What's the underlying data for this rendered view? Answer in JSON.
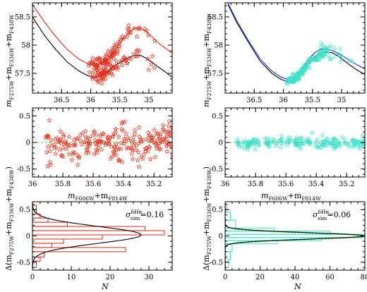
{
  "colors": {
    "red": "#e0301e",
    "cyan": "#3fe0c8",
    "black": "#000000",
    "blue": "#1c2cc8",
    "redline": "#d42a1a",
    "green": "#2ecc40"
  },
  "labels": {
    "y_top_prefix": "m",
    "y_top_sub1": "F275W",
    "y_top_plus1": "+m",
    "y_top_sub2": "F336W",
    "y_top_plus2": "+m",
    "y_top_sub3": "F438W",
    "y_bot_open": "Δ(m",
    "y_bot_sub1": "F275W",
    "y_bot_plus1": "+m",
    "y_bot_sub2": "F336W",
    "y_bot_plus2": "+m",
    "y_bot_sub3": "F438W",
    "y_bot_close": ")",
    "x_mid_m1": "m",
    "x_mid_sub1": "F606W",
    "x_mid_plus": "+m",
    "x_mid_sub2": "F814W",
    "x_bot": "N",
    "sigma_symbol": "σ",
    "sigma_sup": "δHe",
    "sigma_sub": "sim",
    "sigma_left_value": "=0.16",
    "sigma_right_value": "=0.06"
  },
  "chart_data": [
    {
      "id": "top-left",
      "type": "scatter",
      "xlim": [
        37.0,
        34.6
      ],
      "ylim": [
        58.75,
        57.15
      ],
      "xticks": [
        "36.5",
        "36",
        "35.5",
        "35"
      ],
      "xtick_values": [
        36.5,
        36.0,
        35.5,
        35.0
      ],
      "yticks": [
        "57.5",
        "58",
        "58.5"
      ],
      "ytick_values": [
        57.5,
        58.0,
        58.5
      ],
      "series": [
        {
          "kind": "line",
          "color": "black",
          "x": [
            37.0,
            36.8,
            36.6,
            36.4,
            36.2,
            36.05,
            35.95,
            35.85,
            35.75,
            35.65,
            35.55,
            35.45,
            35.35,
            35.25,
            35.15,
            35.05,
            34.95,
            34.85,
            34.75,
            34.6
          ],
          "y": [
            58.5,
            58.18,
            57.92,
            57.7,
            57.54,
            57.46,
            57.43,
            57.45,
            57.5,
            57.58,
            57.66,
            57.72,
            57.78,
            57.82,
            57.82,
            57.77,
            57.7,
            57.62,
            57.55,
            57.43
          ]
        },
        {
          "kind": "line",
          "color": "redline",
          "x": [
            37.0,
            36.8,
            36.6,
            36.4,
            36.2,
            36.05,
            35.95,
            35.85,
            35.75,
            35.65,
            35.55,
            35.45,
            35.35,
            35.25,
            35.15,
            35.05,
            34.95,
            34.85,
            34.75,
            34.6
          ],
          "y": [
            58.72,
            58.42,
            58.15,
            57.92,
            57.75,
            57.67,
            57.64,
            57.66,
            57.72,
            57.82,
            57.95,
            58.1,
            58.22,
            58.3,
            58.3,
            58.24,
            58.15,
            58.05,
            57.97,
            57.86
          ]
        },
        {
          "kind": "points",
          "color": "red",
          "n": 180,
          "seed": 3,
          "model": "top-left"
        }
      ]
    },
    {
      "id": "top-right",
      "type": "scatter",
      "xlim": [
        37.0,
        34.6
      ],
      "ylim": [
        58.75,
        57.15
      ],
      "xticks": [
        "36.5",
        "36",
        "35.5",
        "35"
      ],
      "xtick_values": [
        36.5,
        36.0,
        35.5,
        35.0
      ],
      "yticks": [
        "57.5",
        "58",
        "58.5"
      ],
      "ytick_values": [
        57.5,
        58.0,
        58.5
      ],
      "series": [
        {
          "kind": "line",
          "color": "black",
          "x": [
            36.95,
            36.8,
            36.6,
            36.4,
            36.2,
            36.05,
            35.95,
            35.85,
            35.75,
            35.65,
            35.55,
            35.45,
            35.35,
            35.25,
            35.15,
            35.05,
            34.95,
            34.85,
            34.75,
            34.6
          ],
          "y": [
            58.72,
            58.4,
            58.05,
            57.72,
            57.5,
            57.4,
            57.36,
            57.38,
            57.45,
            57.57,
            57.7,
            57.8,
            57.86,
            57.88,
            57.86,
            57.8,
            57.72,
            57.64,
            57.57,
            57.48
          ]
        },
        {
          "kind": "line",
          "color": "blue",
          "x": [
            36.95,
            36.8,
            36.6,
            36.4,
            36.2,
            36.05,
            35.95,
            35.85,
            35.75,
            35.65,
            35.55,
            35.45,
            35.35,
            35.25,
            35.15,
            35.05,
            34.95,
            34.85,
            34.75,
            34.6
          ],
          "y": [
            58.74,
            58.43,
            58.08,
            57.76,
            57.54,
            57.44,
            57.4,
            57.42,
            57.5,
            57.62,
            57.77,
            57.88,
            57.93,
            57.93,
            57.9,
            57.85,
            57.79,
            57.72,
            57.66,
            57.58
          ]
        },
        {
          "kind": "points",
          "color": "cyan",
          "n": 160,
          "seed": 11,
          "model": "top-right"
        }
      ]
    },
    {
      "id": "mid-left",
      "type": "scatter",
      "xlim": [
        36.0,
        35.08
      ],
      "ylim": [
        0.65,
        -0.65
      ],
      "xticks": [
        "36",
        "35.8",
        "35.6",
        "35.4",
        "35.2"
      ],
      "xtick_values": [
        36.0,
        35.8,
        35.6,
        35.4,
        35.2
      ],
      "yticks": [
        "-0.5",
        "0",
        "0.5"
      ],
      "ytick_values": [
        -0.5,
        0.0,
        0.5
      ],
      "series": [
        {
          "kind": "hline",
          "color": "green",
          "y": 0
        },
        {
          "kind": "points",
          "color": "red",
          "n": 230,
          "seed": 5,
          "sigma": 0.18
        }
      ]
    },
    {
      "id": "mid-right",
      "type": "scatter",
      "xlim": [
        36.0,
        35.08
      ],
      "ylim": [
        0.65,
        -0.65
      ],
      "xticks": [
        "36",
        "35.8",
        "35.6",
        "35.4",
        "35.2"
      ],
      "xtick_values": [
        36.0,
        35.8,
        35.6,
        35.4,
        35.2
      ],
      "yticks": [
        "-0.5",
        "0",
        "0.5"
      ],
      "ytick_values": [
        -0.5,
        0.0,
        0.5
      ],
      "series": [
        {
          "kind": "hline",
          "color": "green",
          "y": 0
        },
        {
          "kind": "points",
          "color": "cyan",
          "n": 200,
          "seed": 9,
          "sigma": 0.05
        }
      ]
    },
    {
      "id": "bot-left",
      "type": "histogram",
      "xlim": [
        0,
        36
      ],
      "ylim": [
        0.65,
        -0.65
      ],
      "xticks": [
        "0",
        "10",
        "20",
        "30"
      ],
      "xtick_values": [
        0,
        10,
        20,
        30
      ],
      "yticks": [
        "-0.5",
        "0",
        "0.5"
      ],
      "ytick_values": [
        -0.5,
        0.0,
        0.5
      ],
      "bin_edges": [
        -0.6,
        -0.48,
        -0.4,
        -0.3,
        -0.22,
        -0.14,
        -0.06,
        0.02,
        0.1,
        0.18,
        0.26,
        0.34,
        0.42,
        0.5,
        0.58
      ],
      "counts": [
        1,
        2,
        3,
        24,
        5,
        8,
        18,
        34,
        29,
        9,
        4,
        2,
        1,
        1
      ],
      "gauss": {
        "peak": 28,
        "mu": 0.02,
        "sigma": 0.16
      },
      "bar_color": "redline",
      "line_color": "black"
    },
    {
      "id": "bot-right",
      "type": "histogram",
      "xlim": [
        0,
        80
      ],
      "ylim": [
        0.65,
        -0.65
      ],
      "xticks": [
        "0",
        "20",
        "40",
        "60",
        "80"
      ],
      "xtick_values": [
        0,
        20,
        40,
        60,
        80
      ],
      "yticks": [
        "-0.5",
        "0",
        "0.5"
      ],
      "ytick_values": [
        -0.5,
        0.0,
        0.5
      ],
      "bin_edges": [
        -0.6,
        -0.45,
        -0.3,
        -0.15,
        -0.09,
        -0.03,
        0.03,
        0.09,
        0.15,
        0.3,
        0.45,
        0.6
      ],
      "counts": [
        2,
        3,
        4,
        30,
        55,
        80,
        60,
        28,
        6,
        3,
        1
      ],
      "gauss": {
        "peak": 80,
        "mu": 0.0,
        "sigma": 0.06
      },
      "bar_color": "cyan",
      "line_color": "black",
      "fit_color": "green"
    }
  ]
}
